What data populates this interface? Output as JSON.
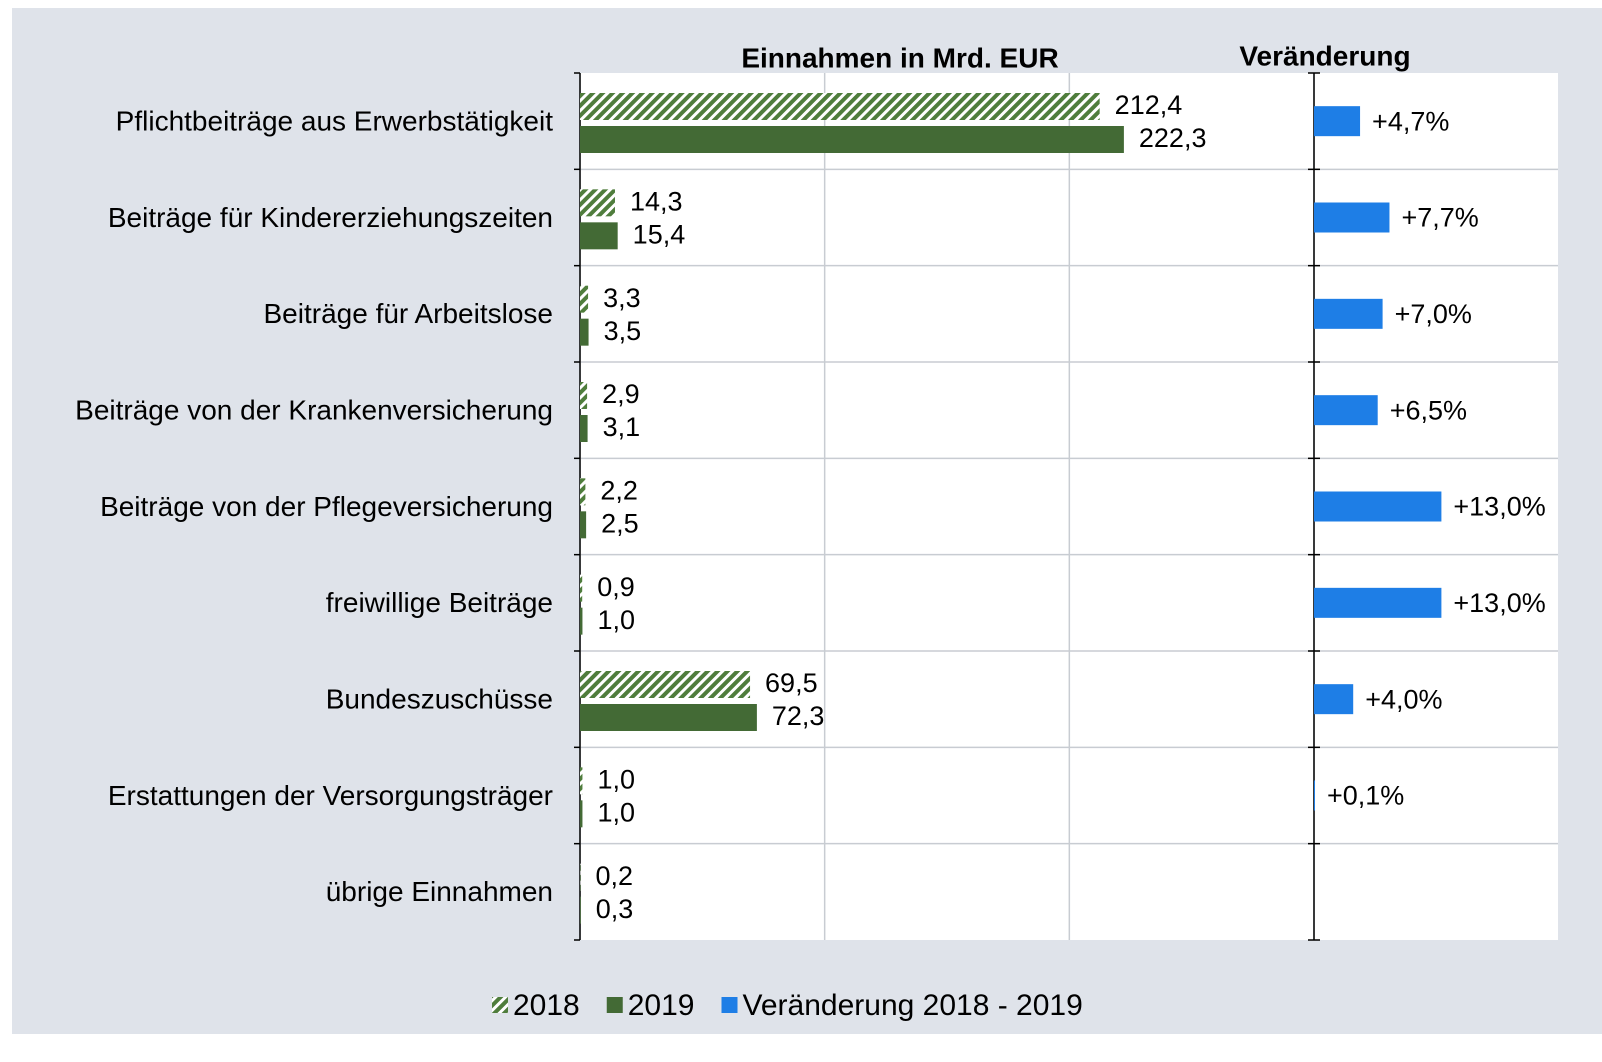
{
  "chart_data": [
    {
      "type": "bar",
      "orientation": "horizontal",
      "title": "Einnahmen in Mrd. EUR",
      "categories": [
        "Pflichtbeiträge aus Erwerbstätigkeit",
        "Beiträge für Kindererziehungszeiten",
        "Beiträge für Arbeitslose",
        "Beiträge von der Krankenversicherung",
        "Beiträge von der Pflegeversicherung",
        "freiwillige Beiträge",
        "Bundeszuschüsse",
        "Erstattungen der Versorgungsträger",
        "übrige Einnahmen"
      ],
      "series": [
        {
          "name": "2018",
          "color": "#4f7d3c",
          "pattern": "hatch",
          "values": [
            212.4,
            14.3,
            3.3,
            2.9,
            2.2,
            0.9,
            69.5,
            1.0,
            0.2
          ],
          "value_labels": [
            "212,4",
            "14,3",
            "3,3",
            "2,9",
            "2,2",
            "0,9",
            "69,5",
            "1,0",
            "0,2"
          ]
        },
        {
          "name": "2019",
          "color": "#436a35",
          "values": [
            222.3,
            15.4,
            3.5,
            3.1,
            2.5,
            1.0,
            72.3,
            1.0,
            0.3
          ],
          "value_labels": [
            "222,3",
            "15,4",
            "3,5",
            "3,1",
            "2,5",
            "1,0",
            "72,3",
            "1,0",
            "0,3"
          ]
        }
      ],
      "xlim": [
        0,
        300
      ],
      "xticks": [
        0,
        100,
        200,
        300
      ],
      "grid": true
    },
    {
      "type": "bar",
      "orientation": "horizontal",
      "title": "Veränderung",
      "series": [
        {
          "name": "Veränderung 2018 - 2019",
          "color": "#1e7ee6",
          "values": [
            4.7,
            7.7,
            7.0,
            6.5,
            13.0,
            13.0,
            4.0,
            0.1,
            null
          ],
          "value_labels": [
            "+4,7%",
            "+7,7%",
            "+7,0%",
            "+6,5%",
            "+13,0%",
            "+13,0%",
            "+4,0%",
            "+0,1%",
            null
          ]
        }
      ],
      "xlim": [
        0,
        25
      ]
    }
  ]
}
